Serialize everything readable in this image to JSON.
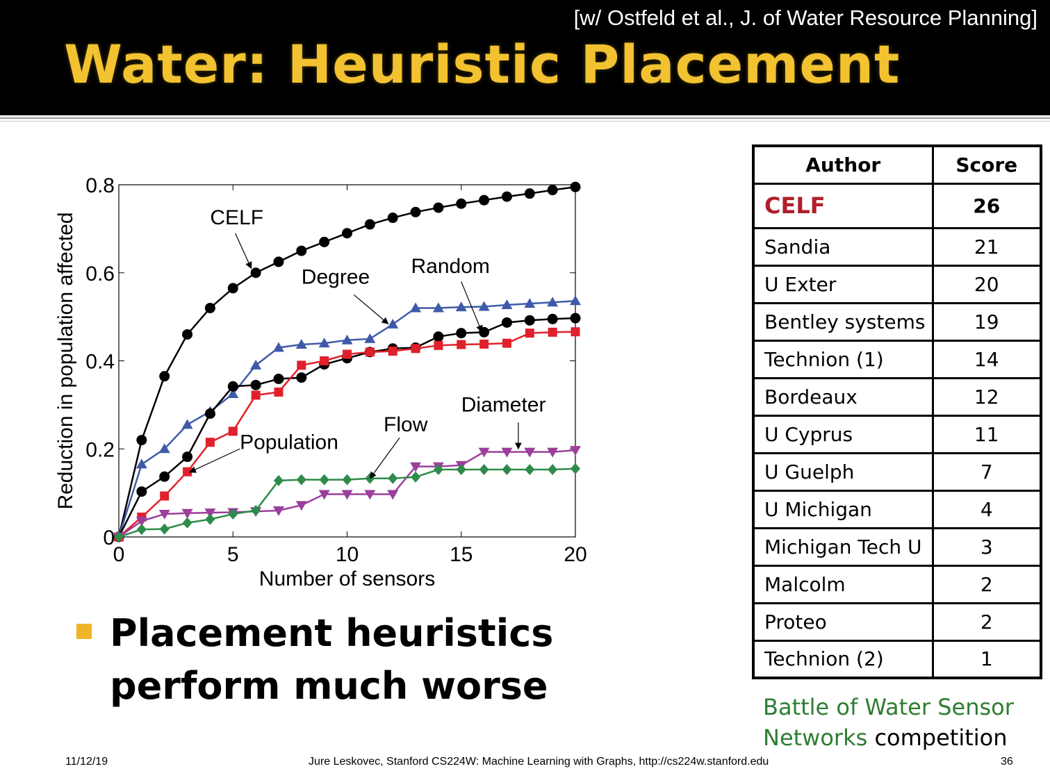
{
  "header": {
    "citation": "[w/ Ostfeld et al., J. of Water Resource Planning]",
    "title": "Water: Heuristic Placement"
  },
  "table": {
    "headers": [
      "Author",
      "Score"
    ],
    "rows": [
      {
        "author": "CELF",
        "score": "26"
      },
      {
        "author": "Sandia",
        "score": "21"
      },
      {
        "author": "U Exter",
        "score": "20"
      },
      {
        "author": "Bentley systems",
        "score": "19"
      },
      {
        "author": "Technion (1)",
        "score": "14"
      },
      {
        "author": "Bordeaux",
        "score": "12"
      },
      {
        "author": "U Cyprus",
        "score": "11"
      },
      {
        "author": "U Guelph",
        "score": "7"
      },
      {
        "author": "U Michigan",
        "score": "4"
      },
      {
        "author": "Michigan Tech U",
        "score": "3"
      },
      {
        "author": "Malcolm",
        "score": "2"
      },
      {
        "author": "Proteo",
        "score": "2"
      },
      {
        "author": "Technion (2)",
        "score": "1"
      }
    ],
    "highlight_color": "#b0202a"
  },
  "caption": {
    "green_part": "Battle of Water Sensor Networks",
    "rest": " competition",
    "green_color": "#2e7d32"
  },
  "bullet": {
    "text": "Placement heuristics perform much worse",
    "marker_color": "#f0b429"
  },
  "footer": {
    "date": "11/12/19",
    "credit": "Jure Leskovec, Stanford CS224W: Machine Learning with Graphs, http://cs224w.stanford.edu",
    "page": "36"
  },
  "chart_data": {
    "type": "line",
    "xlabel": "Number of sensors",
    "ylabel": "Reduction in population affected",
    "xlim": [
      0,
      20
    ],
    "ylim": [
      0,
      0.8
    ],
    "xticks": [
      0,
      5,
      10,
      15,
      20
    ],
    "yticks": [
      0,
      0.2,
      0.4,
      0.6,
      0.8
    ],
    "ytick_labels": [
      "0",
      "0.2",
      "0.4",
      "0.6",
      "0.8"
    ],
    "grid": false,
    "x": [
      0,
      1,
      2,
      3,
      4,
      5,
      6,
      7,
      8,
      9,
      10,
      11,
      12,
      13,
      14,
      15,
      16,
      17,
      18,
      19,
      20
    ],
    "series": [
      {
        "name": "CELF",
        "color": "#000000",
        "marker": "circle",
        "values": [
          0,
          0.22,
          0.365,
          0.46,
          0.52,
          0.565,
          0.6,
          0.625,
          0.65,
          0.67,
          0.69,
          0.71,
          0.725,
          0.738,
          0.748,
          0.757,
          0.765,
          0.773,
          0.78,
          0.788,
          0.795
        ]
      },
      {
        "name": "Degree",
        "color": "#3f5aa8",
        "marker": "triangle-up",
        "values": [
          0,
          0.165,
          0.2,
          0.255,
          0.285,
          0.325,
          0.39,
          0.43,
          0.437,
          0.44,
          0.447,
          0.45,
          0.483,
          0.52,
          0.52,
          0.522,
          0.523,
          0.527,
          0.53,
          0.533,
          0.536
        ]
      },
      {
        "name": "Random",
        "color": "#000000",
        "marker": "circle",
        "values": [
          0,
          0.103,
          0.137,
          0.182,
          0.28,
          0.342,
          0.345,
          0.359,
          0.362,
          0.392,
          0.406,
          0.42,
          0.428,
          0.43,
          0.455,
          0.463,
          0.465,
          0.487,
          0.492,
          0.495,
          0.497
        ]
      },
      {
        "name": "Population",
        "color": "#e0202a",
        "marker": "square",
        "values": [
          0,
          0.045,
          0.093,
          0.148,
          0.215,
          0.24,
          0.322,
          0.329,
          0.39,
          0.4,
          0.415,
          0.42,
          0.422,
          0.428,
          0.435,
          0.437,
          0.438,
          0.44,
          0.463,
          0.465,
          0.466
        ]
      },
      {
        "name": "Diameter",
        "color": "#9b3f9b",
        "marker": "triangle-down",
        "values": [
          0,
          0.036,
          0.052,
          0.054,
          0.055,
          0.056,
          0.058,
          0.06,
          0.072,
          0.097,
          0.097,
          0.097,
          0.097,
          0.16,
          0.16,
          0.163,
          0.193,
          0.193,
          0.193,
          0.193,
          0.197
        ]
      },
      {
        "name": "Flow",
        "color": "#2e8b4a",
        "marker": "diamond",
        "values": [
          0,
          0.017,
          0.018,
          0.032,
          0.04,
          0.052,
          0.06,
          0.128,
          0.13,
          0.13,
          0.13,
          0.133,
          0.133,
          0.136,
          0.153,
          0.153,
          0.153,
          0.153,
          0.153,
          0.153,
          0.155
        ]
      }
    ],
    "annotations": [
      {
        "text": "CELF",
        "x": 4.0,
        "y": 0.71,
        "arrow_to": [
          5.8,
          0.61
        ],
        "arrow_from": [
          5.1,
          0.69
        ]
      },
      {
        "text": "Degree",
        "x": 8.0,
        "y": 0.575,
        "arrow_to": [
          11.8,
          0.484
        ],
        "arrow_from": [
          10.3,
          0.55
        ]
      },
      {
        "text": "Random",
        "x": 12.8,
        "y": 0.6,
        "arrow_to": [
          15.9,
          0.466
        ],
        "arrow_from": [
          15.0,
          0.58
        ]
      },
      {
        "text": "Population",
        "x": 5.3,
        "y": 0.2,
        "arrow_to": [
          3.1,
          0.147
        ],
        "arrow_from": [
          5.3,
          0.2
        ]
      },
      {
        "text": "Flow",
        "x": 11.6,
        "y": 0.24,
        "arrow_to": [
          11.0,
          0.133
        ],
        "arrow_from": [
          12.3,
          0.225
        ]
      },
      {
        "text": "Diameter",
        "x": 15.0,
        "y": 0.285,
        "arrow_to": [
          17.5,
          0.2
        ],
        "arrow_from": [
          17.5,
          0.26
        ]
      }
    ]
  }
}
